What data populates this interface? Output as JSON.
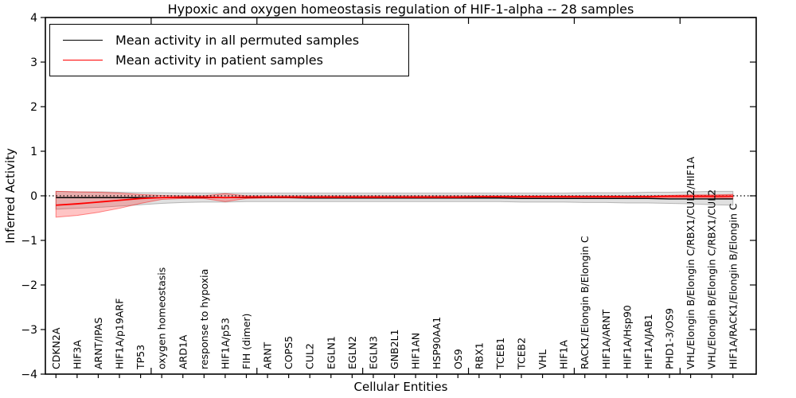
{
  "figure": {
    "title": "Hypoxic and oxygen homeostasis regulation of HIF-1-alpha -- 28 samples",
    "xlabel": "Cellular Entities",
    "ylabel": "Inferred Activity"
  },
  "chart_data": {
    "type": "line",
    "title": "Hypoxic and oxygen homeostasis regulation of HIF-1-alpha -- 28 samples",
    "xlabel": "Cellular Entities",
    "ylabel": "Inferred Activity",
    "ylim": [
      -4,
      4
    ],
    "yticks": [
      -4,
      -3,
      -2,
      -1,
      0,
      1,
      2,
      3,
      4
    ],
    "xticks_numeric": [
      5,
      10,
      15,
      20,
      25,
      30
    ],
    "grid": false,
    "legend_position": "upper left",
    "zero_line": {
      "value": 0,
      "style": "dotted",
      "color": "#000000"
    },
    "categories": [
      "CDKN2A",
      "HIF3A",
      "ARNT/IPAS",
      "HIF1A/p19ARF",
      "TP53",
      "oxygen homeostasis",
      "ARD1A",
      "response to hypoxia",
      "HIF1A/p53",
      "FIH (dimer)",
      "ARNT",
      "COPS5",
      "CUL2",
      "EGLN1",
      "EGLN2",
      "EGLN3",
      "GNB2L1",
      "HIF1AN",
      "HSP90AA1",
      "OS9",
      "RBX1",
      "TCEB1",
      "TCEB2",
      "VHL",
      "HIF1A",
      "RACK1/Elongin B/Elongin C",
      "HIF1A/ARNT",
      "HIF1A/Hsp90",
      "HIF1A/JAB1",
      "PHD1-3/OS9",
      "VHL/Elongin B/Elongin C/RBX1/CUL2/HIF1A",
      "VHL/Elongin B/Elongin C/RBX1/CUL2",
      "HIF1A/RACK1/Elongin B/Elongin C"
    ],
    "series": [
      {
        "name": "Mean activity in all permuted samples",
        "color": "#000000",
        "line_width": 1.4,
        "values": [
          -0.04,
          -0.04,
          -0.04,
          -0.04,
          -0.04,
          -0.04,
          -0.04,
          -0.04,
          -0.04,
          -0.04,
          -0.04,
          -0.04,
          -0.05,
          -0.05,
          -0.05,
          -0.05,
          -0.05,
          -0.05,
          -0.05,
          -0.05,
          -0.05,
          -0.05,
          -0.06,
          -0.06,
          -0.06,
          -0.06,
          -0.06,
          -0.06,
          -0.06,
          -0.07,
          -0.07,
          -0.07,
          -0.07
        ],
        "band": {
          "upper": [
            0.1,
            0.09,
            0.09,
            0.08,
            0.07,
            0.07,
            0.06,
            0.06,
            0.06,
            0.06,
            0.06,
            0.06,
            0.06,
            0.06,
            0.06,
            0.06,
            0.06,
            0.06,
            0.06,
            0.06,
            0.06,
            0.06,
            0.06,
            0.06,
            0.06,
            0.07,
            0.07,
            0.07,
            0.08,
            0.08,
            0.09,
            0.1,
            0.1
          ],
          "lower": [
            -0.3,
            -0.28,
            -0.26,
            -0.23,
            -0.2,
            -0.17,
            -0.15,
            -0.14,
            -0.14,
            -0.13,
            -0.13,
            -0.13,
            -0.13,
            -0.13,
            -0.13,
            -0.13,
            -0.13,
            -0.13,
            -0.13,
            -0.13,
            -0.13,
            -0.13,
            -0.14,
            -0.14,
            -0.14,
            -0.15,
            -0.15,
            -0.16,
            -0.16,
            -0.17,
            -0.18,
            -0.2,
            -0.21
          ],
          "fill": "#999999",
          "opacity": 0.3,
          "edge": "rgba(110,110,110,0.45)"
        }
      },
      {
        "name": "Mean activity in patient samples",
        "color": "#ff0000",
        "line_width": 1.8,
        "values": [
          -0.21,
          -0.18,
          -0.14,
          -0.1,
          -0.06,
          -0.04,
          -0.03,
          -0.03,
          -0.04,
          -0.03,
          -0.03,
          -0.03,
          -0.03,
          -0.03,
          -0.03,
          -0.03,
          -0.03,
          -0.03,
          -0.03,
          -0.03,
          -0.02,
          -0.02,
          -0.02,
          -0.02,
          -0.02,
          -0.02,
          -0.02,
          -0.02,
          -0.02,
          -0.01,
          -0.01,
          -0.01,
          -0.01
        ],
        "band": {
          "upper": [
            0.1,
            0.09,
            0.08,
            0.06,
            0.03,
            0.01,
            0.0,
            0.0,
            0.05,
            0.0,
            0.0,
            0.0,
            0.0,
            0.0,
            0.0,
            0.0,
            0.0,
            0.0,
            0.0,
            0.0,
            0.0,
            0.0,
            0.0,
            0.0,
            0.0,
            0.0,
            0.0,
            0.0,
            0.0,
            0.01,
            0.02,
            0.02,
            0.03
          ],
          "lower": [
            -0.48,
            -0.44,
            -0.37,
            -0.28,
            -0.17,
            -0.08,
            -0.06,
            -0.06,
            -0.13,
            -0.06,
            -0.05,
            -0.05,
            -0.05,
            -0.05,
            -0.05,
            -0.05,
            -0.05,
            -0.05,
            -0.05,
            -0.05,
            -0.04,
            -0.04,
            -0.04,
            -0.04,
            -0.04,
            -0.04,
            -0.04,
            -0.04,
            -0.04,
            -0.04,
            -0.04,
            -0.04,
            -0.06
          ],
          "fill": "#ff2a2a",
          "opacity": 0.28,
          "edge": "rgba(255,0,0,0.45)"
        }
      }
    ]
  }
}
